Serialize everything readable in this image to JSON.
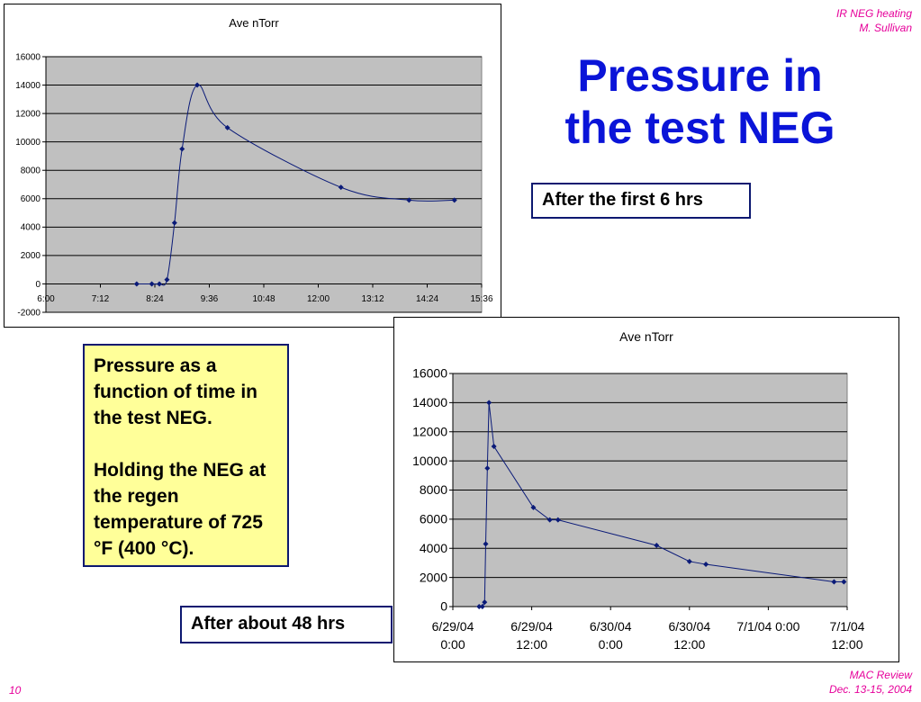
{
  "header": {
    "line1": "IR NEG heating",
    "line2": "M. Sullivan"
  },
  "footer": {
    "line1": "MAC Review",
    "line2": "Dec. 13-15, 2004",
    "page_number": "10"
  },
  "slide_title": {
    "line1": "Pressure in",
    "line2": "the test NEG"
  },
  "callouts": {
    "first": "After the first 6 hrs",
    "second": "After about 48 hrs",
    "description_1": "Pressure as a function of time in the test NEG.",
    "description_2": "Holding the NEG at the regen temperature of 725 °F (400 °C)."
  },
  "colors": {
    "accent": "#0a14d8",
    "header": "#e6009a",
    "series": "#0a1a78",
    "plot_bg": "#c0c0c0",
    "note_bg": "#ffff99"
  },
  "chart_data": [
    {
      "type": "scatter",
      "title": "Ave nTorr",
      "x_unit": "time of day",
      "x_ticks": [
        "6:00",
        "7:12",
        "8:24",
        "9:36",
        "10:48",
        "12:00",
        "13:12",
        "14:24",
        "15:36"
      ],
      "x_range": [
        "6:00",
        "15:36"
      ],
      "ylim": [
        -2000,
        16000
      ],
      "y_ticks": [
        -2000,
        0,
        2000,
        4000,
        6000,
        8000,
        10000,
        12000,
        14000,
        16000
      ],
      "grid": true,
      "series": [
        {
          "points": [
            {
              "x": "8:00",
              "y": 0
            },
            {
              "x": "8:20",
              "y": 0
            },
            {
              "x": "8:30",
              "y": 0
            },
            {
              "x": "8:40",
              "y": 300
            },
            {
              "x": "8:50",
              "y": 4300
            },
            {
              "x": "9:00",
              "y": 9500
            },
            {
              "x": "9:20",
              "y": 14000
            },
            {
              "x": "10:00",
              "y": 11000
            },
            {
              "x": "12:30",
              "y": 6800
            },
            {
              "x": "14:00",
              "y": 5900
            },
            {
              "x": "15:00",
              "y": 5900
            }
          ]
        }
      ]
    },
    {
      "type": "scatter",
      "title": "Ave nTorr",
      "x_ticks": [
        [
          "6/29/04",
          "0:00"
        ],
        [
          "6/29/04",
          "12:00"
        ],
        [
          "6/30/04",
          "0:00"
        ],
        [
          "6/30/04",
          "12:00"
        ],
        [
          "7/1/04 0:00",
          ""
        ],
        [
          "7/1/04",
          "12:00"
        ]
      ],
      "x_range": [
        "6/29/04 0:00",
        "7/1/04 12:00"
      ],
      "ylim": [
        0,
        16000
      ],
      "y_ticks": [
        0,
        2000,
        4000,
        6000,
        8000,
        10000,
        12000,
        14000,
        16000
      ],
      "grid": true,
      "series": [
        {
          "points": [
            {
              "x": "6/29/04 4:00",
              "y": 0
            },
            {
              "x": "6/29/04 4:30",
              "y": 0
            },
            {
              "x": "6/29/04 4:50",
              "y": 300
            },
            {
              "x": "6/29/04 5:00",
              "y": 4300
            },
            {
              "x": "6/29/04 5:15",
              "y": 9500
            },
            {
              "x": "6/29/04 5:30",
              "y": 14000
            },
            {
              "x": "6/29/04 6:15",
              "y": 11000
            },
            {
              "x": "6/29/04 12:15",
              "y": 6800
            },
            {
              "x": "6/29/04 14:45",
              "y": 5950
            },
            {
              "x": "6/29/04 16:00",
              "y": 5950
            },
            {
              "x": "6/30/04 7:00",
              "y": 4200
            },
            {
              "x": "6/30/04 12:00",
              "y": 3100
            },
            {
              "x": "6/30/04 14:30",
              "y": 2900
            },
            {
              "x": "7/1/04 10:00",
              "y": 1700
            },
            {
              "x": "7/1/04 11:30",
              "y": 1700
            }
          ]
        }
      ]
    }
  ]
}
